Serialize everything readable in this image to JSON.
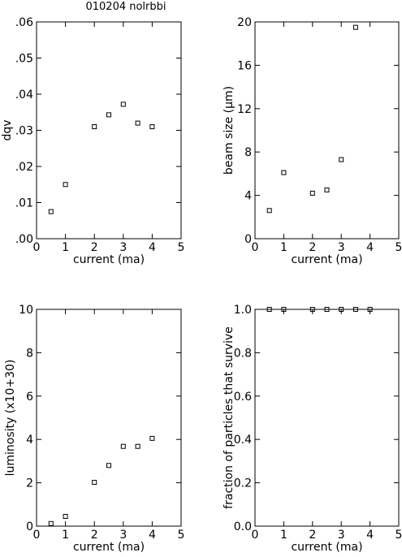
{
  "page": {
    "header": "010204 nolrbbi"
  },
  "chart_data": [
    {
      "type": "scatter",
      "title": "",
      "xlabel": "current (ma)",
      "ylabel": "dqv",
      "xlim": [
        0,
        5
      ],
      "ylim": [
        0,
        0.06
      ],
      "xticks": [
        0,
        1,
        2,
        3,
        4,
        5
      ],
      "xtick_labels": [
        "0",
        "1",
        "2",
        "3",
        "4",
        "5"
      ],
      "yticks": [
        0,
        0.01,
        0.02,
        0.03,
        0.04,
        0.05,
        0.06
      ],
      "ytick_labels": [
        ".00",
        ".01",
        ".02",
        ".03",
        ".04",
        ".05",
        ".06"
      ],
      "grid": false,
      "series": [
        {
          "x": [
            0.5,
            1.0,
            2.0,
            2.5,
            3.0,
            3.5,
            4.0
          ],
          "y": [
            0.0075,
            0.015,
            0.031,
            0.0343,
            0.0372,
            0.032,
            0.031
          ]
        }
      ]
    },
    {
      "type": "scatter",
      "title": "",
      "xlabel": "current (ma)",
      "ylabel": "beam size (μm)",
      "xlim": [
        0,
        5
      ],
      "ylim": [
        0,
        20
      ],
      "xticks": [
        0,
        1,
        2,
        3,
        4,
        5
      ],
      "xtick_labels": [
        "0",
        "1",
        "2",
        "3",
        "4",
        "5"
      ],
      "yticks": [
        0,
        4,
        8,
        12,
        16,
        20
      ],
      "ytick_labels": [
        "0",
        "4",
        "8",
        "12",
        "16",
        "20"
      ],
      "grid": false,
      "series": [
        {
          "x": [
            0.5,
            1.0,
            2.0,
            2.5,
            3.0,
            3.5
          ],
          "y": [
            2.6,
            6.1,
            4.2,
            4.5,
            7.3,
            19.5
          ]
        }
      ]
    },
    {
      "type": "scatter",
      "title": "",
      "xlabel": "current (ma)",
      "ylabel": "luminosity (x10+30)",
      "xlim": [
        0,
        5
      ],
      "ylim": [
        0,
        10
      ],
      "xticks": [
        0,
        1,
        2,
        3,
        4,
        5
      ],
      "xtick_labels": [
        "0",
        "1",
        "2",
        "3",
        "4",
        "5"
      ],
      "yticks": [
        0,
        2,
        4,
        6,
        8,
        10
      ],
      "ytick_labels": [
        "0",
        "2",
        "4",
        "6",
        "8",
        "10"
      ],
      "grid": false,
      "series": [
        {
          "x": [
            0.5,
            1.0,
            2.0,
            2.5,
            3.0,
            3.5,
            4.0
          ],
          "y": [
            0.12,
            0.45,
            2.02,
            2.8,
            3.68,
            3.68,
            4.05
          ]
        }
      ]
    },
    {
      "type": "scatter",
      "title": "",
      "xlabel": "current (ma)",
      "ylabel": "fraction of particles that survive",
      "xlim": [
        0,
        5
      ],
      "ylim": [
        0,
        1
      ],
      "xticks": [
        0,
        1,
        2,
        3,
        4,
        5
      ],
      "xtick_labels": [
        "0",
        "1",
        "2",
        "3",
        "4",
        "5"
      ],
      "yticks": [
        0,
        0.2,
        0.4,
        0.6,
        0.8,
        1.0
      ],
      "ytick_labels": [
        "0.0",
        "0.2",
        "0.4",
        "0.6",
        "0.8",
        "1.0"
      ],
      "grid": false,
      "series": [
        {
          "x": [
            0.5,
            1.0,
            2.0,
            2.5,
            3.0,
            3.5,
            4.0
          ],
          "y": [
            1.0,
            1.0,
            1.0,
            1.0,
            1.0,
            1.0,
            1.0
          ]
        }
      ]
    }
  ]
}
